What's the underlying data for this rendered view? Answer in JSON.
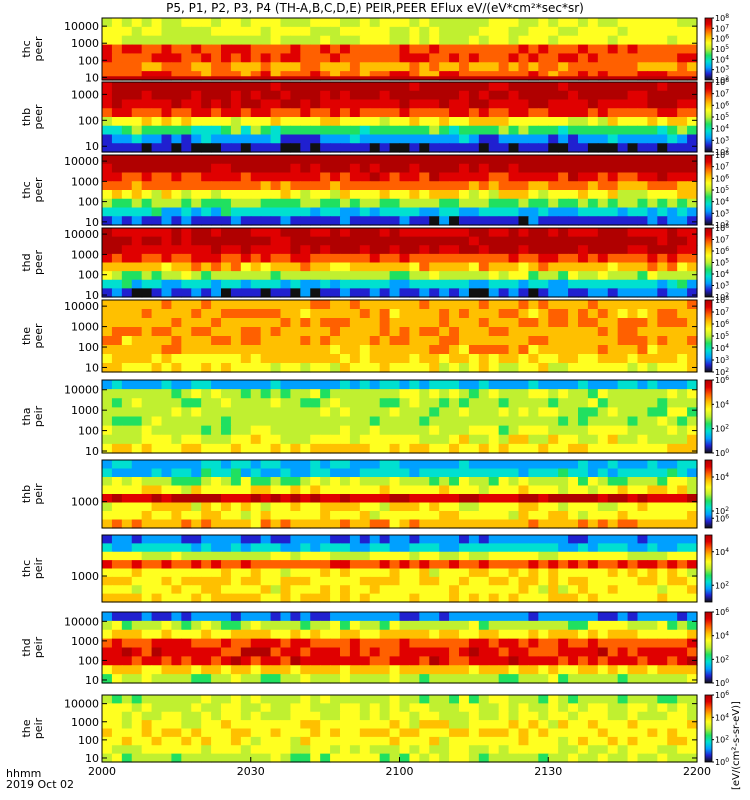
{
  "title": "P5, P1, P2, P3, P4 (TH-A,B,C,D,E) PEIR,PEER EFlux eV/(eV*cm²*sec*sr)",
  "x_axis": {
    "label_line1": "hhmm",
    "label_line2": "2019 Oct 02",
    "ticks": [
      "2000",
      "2030",
      "2100",
      "2130",
      "2200"
    ]
  },
  "colorbar_units": "[eV/(cm²-s-sr-eV)]",
  "colors": {
    "scale": [
      "#101010",
      "#2020d0",
      "#00a0ff",
      "#00e0d0",
      "#20e060",
      "#c0f030",
      "#ffff20",
      "#ffc000",
      "#ff6000",
      "#e00000",
      "#b00000"
    ]
  },
  "chart_data": [
    {
      "type": "heatmap",
      "ylabel": "thc\npeer",
      "yscale": "log",
      "ylim": [
        7,
        30000
      ],
      "yticks": [
        "10",
        "100",
        "1000",
        "10000"
      ],
      "colorbar": {
        "log_range": [
          2,
          8
        ],
        "tick_exponents": [
          2,
          3,
          4,
          5,
          6,
          7,
          8
        ]
      },
      "energy_profile": [
        0.55,
        0.55,
        0.55,
        0.8,
        0.8,
        0.72,
        0.78
      ],
      "bottom_band": {
        "color": "#c00000",
        "frac": 0.06
      }
    },
    {
      "type": "heatmap",
      "ylabel": "thb\npeer",
      "yscale": "log",
      "ylim": [
        6,
        3000
      ],
      "yticks": [
        "10",
        "100",
        "1000"
      ],
      "colorbar": {
        "log_range": [
          2,
          8
        ],
        "tick_exponents": [
          2,
          3,
          4,
          5,
          6,
          7,
          8
        ]
      },
      "energy_profile": [
        0.97,
        0.95,
        0.9,
        0.8,
        0.6,
        0.4,
        0.22,
        0.1
      ]
    },
    {
      "type": "heatmap",
      "ylabel": "thc\npeer",
      "yscale": "log",
      "ylim": [
        7,
        20000
      ],
      "yticks": [
        "10",
        "100",
        "1000",
        "10000"
      ],
      "colorbar": {
        "log_range": [
          2,
          8
        ],
        "tick_exponents": [
          2,
          3,
          4,
          5,
          6,
          7,
          8
        ]
      },
      "energy_profile": [
        0.98,
        0.95,
        0.85,
        0.75,
        0.6,
        0.45,
        0.3,
        0.15
      ]
    },
    {
      "type": "heatmap",
      "ylabel": "thd\npeer",
      "yscale": "log",
      "ylim": [
        8,
        20000
      ],
      "yticks": [
        "10",
        "100",
        "1000",
        "10000"
      ],
      "colorbar": {
        "log_range": [
          2,
          8
        ],
        "tick_exponents": [
          2,
          3,
          4,
          5,
          6,
          7,
          8
        ]
      },
      "energy_profile": [
        0.9,
        0.96,
        0.92,
        0.8,
        0.68,
        0.5,
        0.3,
        0.15
      ]
    },
    {
      "type": "heatmap",
      "ylabel": "the\npeer",
      "yscale": "log",
      "ylim": [
        6,
        20000
      ],
      "yticks": [
        "10",
        "100",
        "1000",
        "10000"
      ],
      "colorbar": {
        "log_range": [
          2,
          8
        ],
        "tick_exponents": [
          2,
          3,
          4,
          5,
          6,
          7,
          8
        ]
      },
      "energy_profile": [
        0.7,
        0.7,
        0.72,
        0.72,
        0.7,
        0.7,
        0.66,
        0.6
      ]
    },
    {
      "type": "heatmap",
      "ylabel": "tha\npeir",
      "yscale": "log",
      "ylim": [
        8,
        30000
      ],
      "yticks": [
        "10",
        "100",
        "1000",
        "10000"
      ],
      "colorbar": {
        "log_range": [
          0,
          6
        ],
        "tick_exponents": [
          0,
          2,
          4,
          6
        ]
      },
      "energy_profile": [
        0.25,
        0.5,
        0.5,
        0.5,
        0.48,
        0.52,
        0.58,
        0.62
      ]
    },
    {
      "type": "heatmap",
      "ylabel": "thb\npeir",
      "yscale": "log",
      "ylim": [
        150,
        20000
      ],
      "yticks": [
        "1000"
      ],
      "colorbar": {
        "log_range": [
          1,
          5
        ],
        "tick_exponents": [
          2,
          4
        ]
      },
      "energy_profile": [
        0.25,
        0.3,
        0.5,
        0.6,
        0.9,
        0.6,
        0.6,
        0.7
      ]
    },
    {
      "type": "heatmap",
      "ylabel": "thc\npeir",
      "yscale": "log",
      "ylim": [
        150,
        20000
      ],
      "yticks": [
        "1000"
      ],
      "colorbar": {
        "log_range": [
          1,
          5
        ],
        "tick_exponents": [
          2,
          4,
          6
        ]
      },
      "energy_profile": [
        0.2,
        0.3,
        0.55,
        0.8,
        0.6,
        0.65,
        0.6,
        0.62
      ]
    },
    {
      "type": "heatmap",
      "ylabel": "thd\npeir",
      "yscale": "log",
      "ylim": [
        7,
        30000
      ],
      "yticks": [
        "10",
        "100",
        "1000",
        "10000"
      ],
      "colorbar": {
        "log_range": [
          0,
          6
        ],
        "tick_exponents": [
          0,
          2,
          4,
          6
        ]
      },
      "energy_profile": [
        0.2,
        0.5,
        0.65,
        0.8,
        0.85,
        0.85,
        0.65,
        0.5
      ]
    },
    {
      "type": "heatmap",
      "ylabel": "the\npeir",
      "yscale": "log",
      "ylim": [
        6,
        30000
      ],
      "yticks": [
        "10",
        "100",
        "1000",
        "10000"
      ],
      "colorbar": {
        "log_range": [
          0,
          6
        ],
        "tick_exponents": [
          0,
          2,
          4,
          6
        ]
      },
      "energy_profile": [
        0.5,
        0.55,
        0.55,
        0.6,
        0.62,
        0.6,
        0.55,
        0.5
      ]
    }
  ]
}
